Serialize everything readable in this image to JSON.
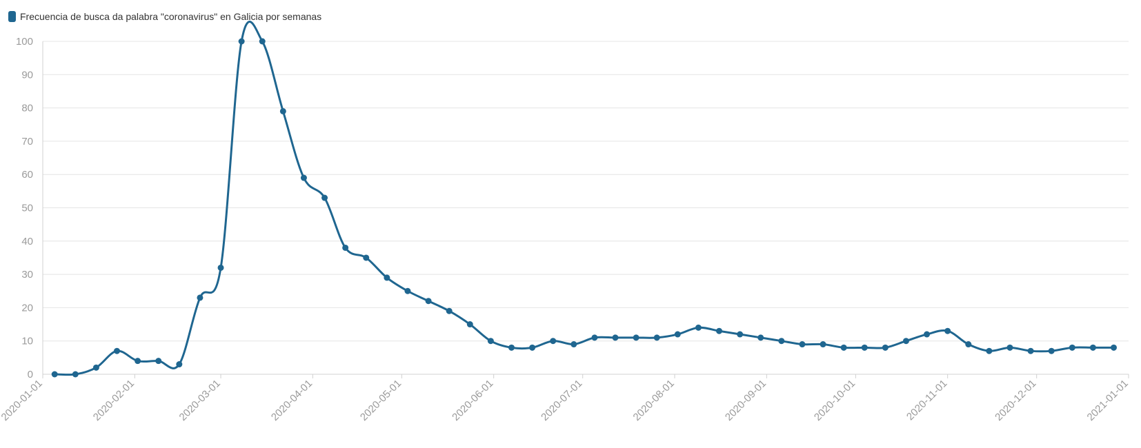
{
  "chart_data": {
    "type": "line",
    "legend": {
      "label": "Frecuencia de busca da palabra \"coronavirus\" en Galicia por semanas",
      "placement": "top-left"
    },
    "series": [
      {
        "name": "Frecuencia de busca da palabra \"coronavirus\" en Galicia por semanas",
        "color": "#1f6690",
        "x": [
          "2020-01-05",
          "2020-01-12",
          "2020-01-19",
          "2020-01-26",
          "2020-02-02",
          "2020-02-09",
          "2020-02-16",
          "2020-02-23",
          "2020-03-01",
          "2020-03-08",
          "2020-03-15",
          "2020-03-22",
          "2020-03-29",
          "2020-04-05",
          "2020-04-12",
          "2020-04-19",
          "2020-04-26",
          "2020-05-03",
          "2020-05-10",
          "2020-05-17",
          "2020-05-24",
          "2020-05-31",
          "2020-06-07",
          "2020-06-14",
          "2020-06-21",
          "2020-06-28",
          "2020-07-05",
          "2020-07-12",
          "2020-07-19",
          "2020-07-26",
          "2020-08-02",
          "2020-08-09",
          "2020-08-16",
          "2020-08-23",
          "2020-08-30",
          "2020-09-06",
          "2020-09-13",
          "2020-09-20",
          "2020-09-27",
          "2020-10-04",
          "2020-10-11",
          "2020-10-18",
          "2020-10-25",
          "2020-11-01",
          "2020-11-08",
          "2020-11-15",
          "2020-11-22",
          "2020-11-29",
          "2020-12-06",
          "2020-12-13",
          "2020-12-20",
          "2020-12-27"
        ],
        "y": [
          0,
          0,
          2,
          7,
          4,
          4,
          3,
          23,
          32,
          100,
          100,
          79,
          59,
          53,
          38,
          35,
          29,
          25,
          22,
          19,
          15,
          10,
          8,
          8,
          10,
          9,
          11,
          11,
          11,
          11,
          12,
          14,
          13,
          12,
          11,
          10,
          9,
          9,
          8,
          8,
          8,
          10,
          12,
          13,
          9,
          7,
          8,
          7,
          7,
          8,
          8,
          8
        ]
      }
    ],
    "x_axis": {
      "type": "date",
      "range": [
        "2020-01-01",
        "2021-01-01"
      ],
      "ticks": [
        "2020-01-01",
        "2020-02-01",
        "2020-03-01",
        "2020-04-01",
        "2020-05-01",
        "2020-06-01",
        "2020-07-01",
        "2020-08-01",
        "2020-09-01",
        "2020-10-01",
        "2020-11-01",
        "2020-12-01",
        "2021-01-01"
      ],
      "tick_label_rotation": "diagonal"
    },
    "y_axis": {
      "range": [
        0,
        100
      ],
      "ticks": [
        "0",
        "10",
        "20",
        "30",
        "40",
        "50",
        "60",
        "70",
        "80",
        "90",
        "100"
      ]
    },
    "grid": true,
    "title": "",
    "xlabel": "",
    "ylabel": ""
  }
}
